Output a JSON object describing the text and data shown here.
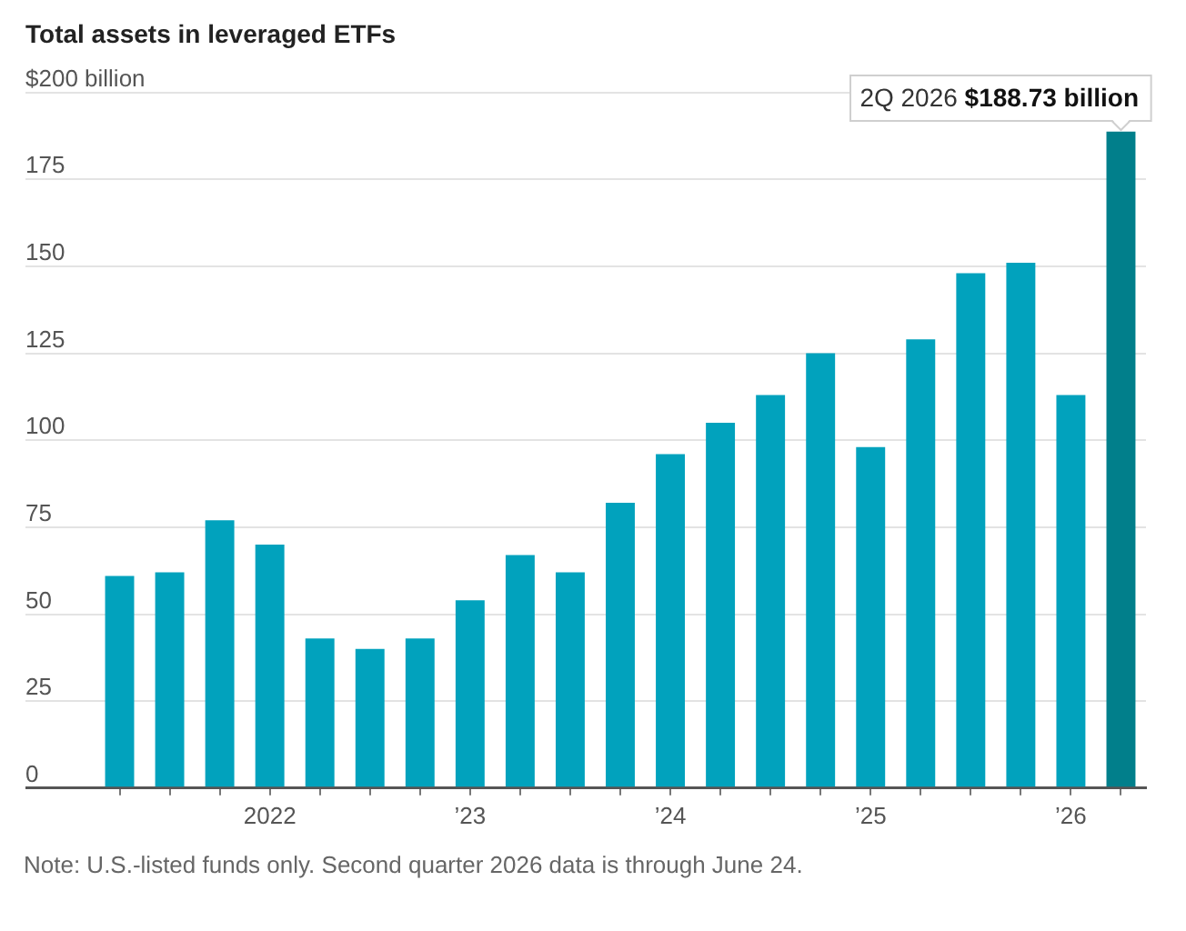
{
  "chart_data": {
    "type": "bar",
    "title": "Total assets in leveraged ETFs",
    "categories": [
      null,
      null,
      null,
      "2022",
      null,
      null,
      null,
      "’23",
      null,
      null,
      null,
      "’24",
      null,
      null,
      null,
      "’25",
      null,
      null,
      null,
      "’26",
      null
    ],
    "values": [
      61,
      62,
      77,
      70,
      43,
      40,
      43,
      54,
      67,
      62,
      82,
      96,
      105,
      113,
      125,
      98,
      129,
      148,
      151,
      113,
      188.73
    ],
    "colors": [
      "#01a2bd",
      "#01a2bd",
      "#01a2bd",
      "#01a2bd",
      "#01a2bd",
      "#01a2bd",
      "#01a2bd",
      "#01a2bd",
      "#01a2bd",
      "#01a2bd",
      "#01a2bd",
      "#01a2bd",
      "#01a2bd",
      "#01a2bd",
      "#01a2bd",
      "#01a2bd",
      "#01a2bd",
      "#01a2bd",
      "#01a2bd",
      "#01a2bd",
      "#017f8b"
    ],
    "ylim": [
      0,
      200
    ],
    "yticks": [
      0,
      25,
      50,
      75,
      100,
      125,
      150,
      175,
      {
        "value": 200,
        "label": "$200 billion"
      }
    ],
    "grid": "y",
    "legend": false,
    "annotations": [
      "2Q 2026 $188.73 billion",
      "Note: U.S.-listed funds only. Second quarter 2026 data is through June 24."
    ]
  }
}
